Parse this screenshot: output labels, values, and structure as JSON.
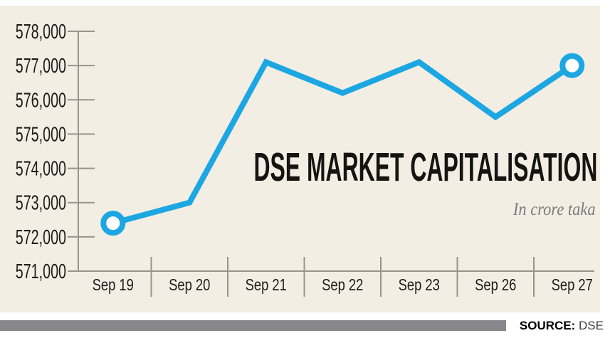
{
  "chart_data": {
    "type": "line",
    "title": "DSE MARKET CAPITALISATION",
    "subtitle": "In crore taka",
    "categories": [
      "Sep 19",
      "Sep 20",
      "Sep 21",
      "Sep 22",
      "Sep 23",
      "Sep 26",
      "Sep 27"
    ],
    "values": [
      572400,
      573000,
      577100,
      576200,
      577100,
      575500,
      577000
    ],
    "series_name": "DSE market capitalisation (crore taka)",
    "ylim": [
      571000,
      578000
    ],
    "ytick_step": 1000,
    "ytick_labels": [
      "571,000",
      "572,000",
      "573,000",
      "574,000",
      "575,000",
      "576,000",
      "577,000",
      "578,000"
    ],
    "grid": false,
    "legend": "none",
    "line_color": "#1da7e2",
    "axis_color": "#98948a",
    "label_color": "#1e1c19",
    "marker_point_indices": [
      0,
      6
    ]
  },
  "footer": {
    "source_label": "SOURCE:",
    "source_value": "DSE"
  },
  "colors": {
    "panel_bg": "#f2eee4",
    "accent_blue": "#1da7e2",
    "axis_gray": "#98948a",
    "divider_gray": "#87868a",
    "title_black": "#161411",
    "subtitle_gray": "#7c7c7c"
  }
}
